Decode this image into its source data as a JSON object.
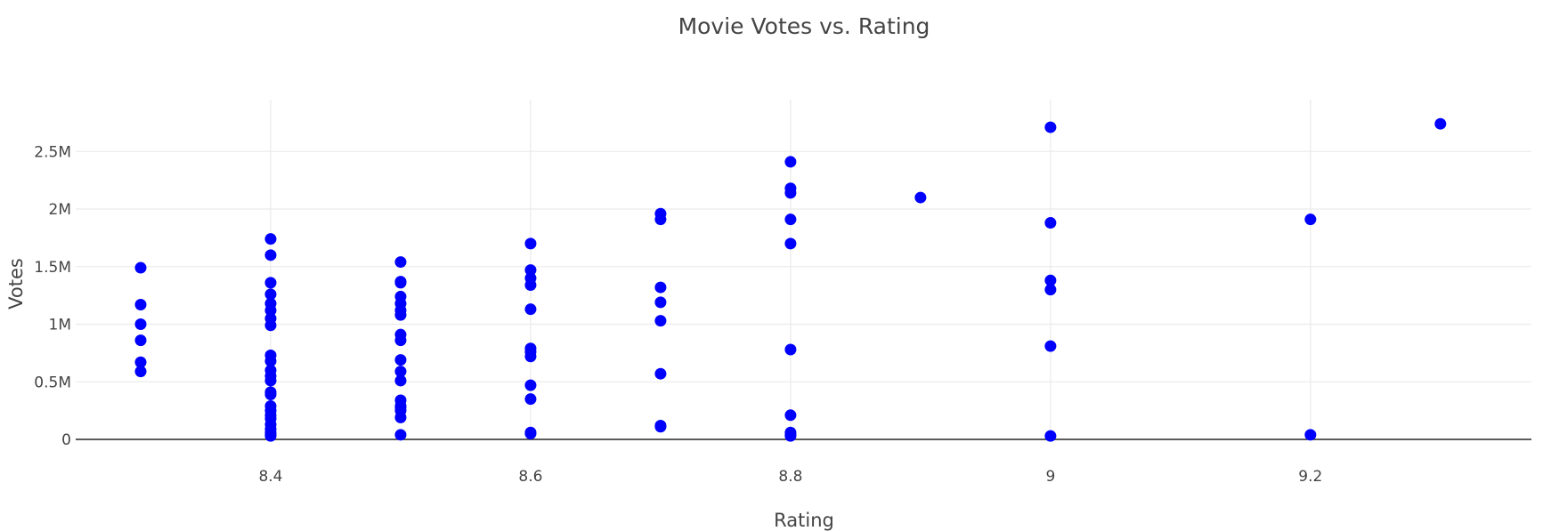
{
  "chart_data": {
    "type": "scatter",
    "title": "Movie Votes vs. Rating",
    "xlabel": "Rating",
    "ylabel": "Votes",
    "xlim": [
      8.25,
      9.37
    ],
    "ylim": [
      0,
      2.95
    ],
    "y_unit_note": "millions",
    "x_ticks": [
      {
        "value": 8.4,
        "label": "8.4"
      },
      {
        "value": 8.6,
        "label": "8.6"
      },
      {
        "value": 8.8,
        "label": "8.8"
      },
      {
        "value": 9.0,
        "label": "9"
      },
      {
        "value": 9.2,
        "label": "9.2"
      }
    ],
    "y_ticks": [
      {
        "value": 0,
        "label": "0"
      },
      {
        "value": 0.5,
        "label": "0.5M"
      },
      {
        "value": 1.0,
        "label": "1M"
      },
      {
        "value": 1.5,
        "label": "1.5M"
      },
      {
        "value": 2.0,
        "label": "2M"
      },
      {
        "value": 2.5,
        "label": "2.5M"
      }
    ],
    "grid": true,
    "legend": "none",
    "marker_color": "#0000ff",
    "series": [
      {
        "x": [
          8.3,
          8.3,
          8.3,
          8.3,
          8.3,
          8.3,
          8.4,
          8.4,
          8.4,
          8.4,
          8.4,
          8.4,
          8.4,
          8.4,
          8.4,
          8.4,
          8.4,
          8.4,
          8.4,
          8.4,
          8.4,
          8.4,
          8.4,
          8.4,
          8.4,
          8.4,
          8.4,
          8.4,
          8.4,
          8.4,
          8.5,
          8.5,
          8.5,
          8.5,
          8.5,
          8.5,
          8.5,
          8.5,
          8.5,
          8.5,
          8.5,
          8.5,
          8.5,
          8.5,
          8.5,
          8.5,
          8.5,
          8.5,
          8.6,
          8.6,
          8.6,
          8.6,
          8.6,
          8.6,
          8.6,
          8.6,
          8.6,
          8.6,
          8.6,
          8.6,
          8.7,
          8.7,
          8.7,
          8.7,
          8.7,
          8.7,
          8.7,
          8.7,
          8.8,
          8.8,
          8.8,
          8.8,
          8.8,
          8.8,
          8.8,
          8.8,
          8.8,
          8.8,
          8.9,
          9.0,
          9.0,
          9.0,
          9.0,
          9.0,
          9.0,
          9.2,
          9.2,
          9.3
        ],
        "y": [
          1.49,
          1.17,
          1.0,
          0.86,
          0.67,
          0.59,
          1.74,
          1.6,
          1.36,
          1.26,
          1.18,
          1.12,
          1.05,
          0.99,
          0.73,
          0.68,
          0.6,
          0.55,
          0.51,
          0.41,
          0.39,
          0.29,
          0.25,
          0.21,
          0.18,
          0.13,
          0.09,
          0.06,
          0.04,
          0.03,
          1.54,
          1.37,
          1.36,
          1.24,
          1.18,
          1.12,
          1.08,
          0.91,
          0.86,
          0.69,
          0.59,
          0.51,
          0.34,
          0.29,
          0.28,
          0.25,
          0.19,
          0.04,
          1.7,
          1.47,
          1.4,
          1.34,
          1.13,
          0.79,
          0.76,
          0.72,
          0.47,
          0.35,
          0.06,
          0.05,
          1.96,
          1.91,
          1.32,
          1.19,
          1.03,
          0.57,
          0.12,
          0.11,
          2.41,
          2.18,
          2.14,
          1.91,
          1.7,
          0.78,
          0.21,
          0.06,
          0.04,
          0.03,
          2.1,
          2.71,
          1.88,
          1.38,
          1.3,
          0.81,
          0.03,
          1.91,
          0.04,
          2.74
        ]
      }
    ]
  }
}
